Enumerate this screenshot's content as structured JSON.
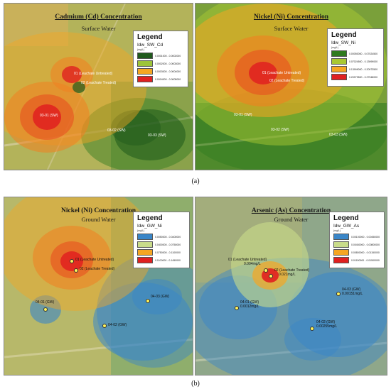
{
  "captions": {
    "a": "(a)",
    "b": "(b)"
  },
  "panels": {
    "cd": {
      "title": "Cadmium (Cd) Concentration",
      "subtitle": "Surface Water",
      "legend": {
        "heading": "Legend",
        "layer": "Idw_SW_Cd",
        "unit": "(mg/L)",
        "classes": [
          {
            "range": "0.0001000 - 0.0002000",
            "color": "#1f5a1c"
          },
          {
            "range": "0.0002000 - 0.0003000",
            "color": "#9dc43a"
          },
          {
            "range": "0.0003000 - 0.0004000",
            "color": "#f5a623"
          },
          {
            "range": "0.0004000 - 0.0005000",
            "color": "#e02020"
          }
        ]
      },
      "sites": [
        {
          "label": "01 (Leachate Untreated)"
        },
        {
          "label": "02 (Leachate Treated)"
        },
        {
          "label": "03-01 (SW)"
        },
        {
          "label": "03-02 (SW)"
        },
        {
          "label": "03-03 (SW)"
        }
      ]
    },
    "ni_sw": {
      "title": "Nickel (Ni) Concentration",
      "subtitle": "Surface Water",
      "legend": {
        "heading": "Legend",
        "layer": "Idw_SW_Ni",
        "unit": "(mg/L)",
        "classes": [
          {
            "range": "0.00050000 - 0.07024500",
            "color": "#2f7a1f"
          },
          {
            "range": "0.07024500 - 0.13999000",
            "color": "#a8c832"
          },
          {
            "range": "0.13999000 - 0.20973500",
            "color": "#f5a623"
          },
          {
            "range": "0.20973500 - 0.27948000",
            "color": "#e02020"
          }
        ]
      },
      "sites": [
        {
          "label": "01 (Leachate Untreated)"
        },
        {
          "label": "02 (Leachate Treated)"
        },
        {
          "label": "03-01 (SW)"
        },
        {
          "label": "03-02 (SW)"
        },
        {
          "label": "03-03 (SW)"
        }
      ]
    },
    "ni_gw": {
      "title": "Nickel (Ni) Concentration",
      "subtitle": "Ground Water",
      "legend": {
        "heading": "Legend",
        "layer": "Idw_GW_Ni",
        "unit": "(mg/L)",
        "classes": [
          {
            "range": "0.0050000 - 0.0400000",
            "color": "#3a86c8"
          },
          {
            "range": "0.0400000 - 0.0750000",
            "color": "#c9dc8a"
          },
          {
            "range": "0.0750000 - 0.1100000",
            "color": "#f5a623"
          },
          {
            "range": "0.1100000 - 0.1450000",
            "color": "#e02020"
          }
        ]
      },
      "sites": [
        {
          "label": "01 (Leachate Untreated)"
        },
        {
          "label": "02 (Leachate Treated)"
        },
        {
          "label": "04-01 (GW)"
        },
        {
          "label": "04-02 (GW)"
        },
        {
          "label": "04-03 (GW)"
        }
      ]
    },
    "as_gw": {
      "title": "Arsenic (As) Concentration",
      "subtitle": "Ground Water",
      "legend": {
        "heading": "Legend",
        "layer": "Idw_GW_As",
        "unit": "(mg/L)",
        "classes": [
          {
            "range": "0.00100000 - 0.00450000",
            "color": "#3a86c8"
          },
          {
            "range": "0.00450000 - 0.00800000",
            "color": "#c9dc8a"
          },
          {
            "range": "0.00800000 - 0.01150000",
            "color": "#f5a623"
          },
          {
            "range": "0.01150000 - 0.01500000",
            "color": "#e02020"
          }
        ]
      },
      "sites": [
        {
          "label": "01 (Leachate Untreated)",
          "value": "0.004mg/L"
        },
        {
          "label": "02 (Leachate Treated)",
          "value": "0.021mg/L"
        },
        {
          "label": "04-01 (GW)",
          "value": "0.0012mg/L"
        },
        {
          "label": "04-02 (GW)",
          "value": "0.00255mg/L"
        },
        {
          "label": "04-03 (GW)",
          "value": "0.00151mg/L"
        }
      ]
    }
  }
}
